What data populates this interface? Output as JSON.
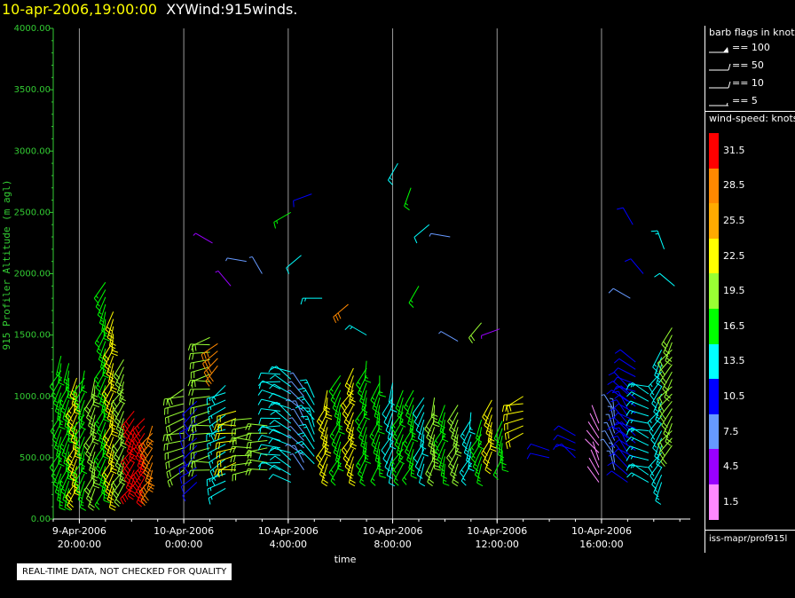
{
  "header": {
    "date": "10-apr-2006,19:00:00",
    "name": "XYWind:915winds."
  },
  "notice": "REAL-TIME DATA, NOT CHECKED FOR QUALITY",
  "legend": {
    "barb_header": "barb flags in knots",
    "flags": [
      {
        "label": "== 100"
      },
      {
        "label": "== 50"
      },
      {
        "label": "== 10"
      },
      {
        "label": "== 5"
      }
    ],
    "speed_header": "wind-speed: knots",
    "source": "iss-mapr/prof915l"
  },
  "colors": {
    "axis": "#33cc33",
    "scale": [
      "#ff0000",
      "#ff8800",
      "#ffaa00",
      "#ffff00",
      "#99ff33",
      "#00ff00",
      "#00ffff",
      "#0000ff",
      "#6699ff",
      "#9900ff",
      "#ff88ff"
    ]
  },
  "chart_data": {
    "type": "scatter",
    "xlabel": "time",
    "ylabel": "915 Profiler Altitude (m agl)",
    "ylim": [
      0,
      4000
    ],
    "yticks": [
      "0.00",
      "500.00",
      "1000.00",
      "1500.00",
      "2000.00",
      "2500.00",
      "3000.00",
      "3500.00",
      "4000.00"
    ],
    "xticks": [
      {
        "date": "9-Apr-2006",
        "time": "20:00:00",
        "hour": 20
      },
      {
        "date": "10-Apr-2006",
        "time": "0:00:00",
        "hour": 24
      },
      {
        "date": "10-Apr-2006",
        "time": "4:00:00",
        "hour": 28
      },
      {
        "date": "10-Apr-2006",
        "time": "8:00:00",
        "hour": 32
      },
      {
        "date": "10-Apr-2006",
        "time": "12:00:00",
        "hour": 36
      },
      {
        "date": "10-Apr-2006",
        "time": "16:00:00",
        "hour": 40
      }
    ],
    "xlim": [
      19,
      43.4
    ],
    "speed_scale": [
      "31.5",
      "28.5",
      "25.5",
      "22.5",
      "19.5",
      "16.5",
      "13.5",
      "10.5",
      "7.5",
      "4.5",
      "1.5"
    ],
    "profiles": [
      {
        "t": 19.3,
        "bottom": 250,
        "top": 1350,
        "speed": 18,
        "dir": 200
      },
      {
        "t": 19.6,
        "bottom": 250,
        "top": 1300,
        "speed": 17,
        "dir": 195
      },
      {
        "t": 19.9,
        "bottom": 250,
        "top": 1150,
        "speed": 20,
        "dir": 200
      },
      {
        "t": 20.2,
        "bottom": 250,
        "top": 1250,
        "speed": 17,
        "dir": 205
      },
      {
        "t": 20.6,
        "bottom": 250,
        "top": 1200,
        "speed": 16,
        "dir": 200
      },
      {
        "t": 21.0,
        "bottom": 250,
        "top": 1950,
        "speed": 19,
        "dir": 200
      },
      {
        "t": 21.3,
        "bottom": 250,
        "top": 1700,
        "speed": 20,
        "dir": 200
      },
      {
        "t": 21.7,
        "bottom": 280,
        "top": 1300,
        "speed": 21,
        "dir": 205
      },
      {
        "t": 22.1,
        "bottom": 280,
        "top": 900,
        "speed": 30,
        "dir": 210
      },
      {
        "t": 22.5,
        "bottom": 280,
        "top": 850,
        "speed": 30,
        "dir": 210
      },
      {
        "t": 22.8,
        "bottom": 280,
        "top": 800,
        "speed": 30,
        "dir": 210
      },
      {
        "t": 24.0,
        "bottom": 400,
        "top": 1100,
        "speed": 17,
        "dir": 250
      },
      {
        "t": 24.5,
        "bottom": 300,
        "top": 1000,
        "speed": 11,
        "dir": 230
      },
      {
        "t": 25.0,
        "bottom": 400,
        "top": 1500,
        "speed": 18,
        "dir": 260
      },
      {
        "t": 25.3,
        "bottom": 1250,
        "top": 1450,
        "speed": 31,
        "dir": 230
      },
      {
        "t": 25.6,
        "bottom": 250,
        "top": 1100,
        "speed": 14,
        "dir": 240
      },
      {
        "t": 26.0,
        "bottom": 400,
        "top": 900,
        "speed": 19,
        "dir": 260
      },
      {
        "t": 26.6,
        "bottom": 400,
        "top": 850,
        "speed": 20,
        "dir": 265
      },
      {
        "t": 27.2,
        "bottom": 400,
        "top": 800,
        "speed": 18,
        "dir": 270
      },
      {
        "t": 27.7,
        "bottom": 400,
        "top": 1200,
        "speed": 14,
        "dir": 280
      },
      {
        "t": 28.1,
        "bottom": 300,
        "top": 1250,
        "speed": 11,
        "dir": 300
      },
      {
        "t": 28.6,
        "bottom": 400,
        "top": 1100,
        "speed": 9,
        "dir": 320
      },
      {
        "t": 29.0,
        "bottom": 450,
        "top": 1000,
        "speed": 13,
        "dir": 330
      },
      {
        "t": 29.5,
        "bottom": 450,
        "top": 1100,
        "speed": 18,
        "dir": 200
      },
      {
        "t": 30.0,
        "bottom": 450,
        "top": 1200,
        "speed": 17,
        "dir": 200
      },
      {
        "t": 30.5,
        "bottom": 450,
        "top": 1250,
        "speed": 19,
        "dir": 205
      },
      {
        "t": 31.0,
        "bottom": 450,
        "top": 1300,
        "speed": 17,
        "dir": 200
      },
      {
        "t": 31.5,
        "bottom": 450,
        "top": 1200,
        "speed": 16,
        "dir": 195
      },
      {
        "t": 32.0,
        "bottom": 450,
        "top": 1150,
        "speed": 15,
        "dir": 200
      },
      {
        "t": 32.4,
        "bottom": 450,
        "top": 1100,
        "speed": 17,
        "dir": 205
      },
      {
        "t": 32.8,
        "bottom": 450,
        "top": 1050,
        "speed": 14,
        "dir": 200
      },
      {
        "t": 33.2,
        "bottom": 450,
        "top": 1000,
        "speed": 13,
        "dir": 200
      },
      {
        "t": 33.6,
        "bottom": 450,
        "top": 1000,
        "speed": 16,
        "dir": 195
      },
      {
        "t": 34.0,
        "bottom": 450,
        "top": 950,
        "speed": 18,
        "dir": 200
      },
      {
        "t": 34.5,
        "bottom": 450,
        "top": 950,
        "speed": 19,
        "dir": 200
      },
      {
        "t": 35.0,
        "bottom": 450,
        "top": 900,
        "speed": 17,
        "dir": 200
      },
      {
        "t": 35.4,
        "bottom": 450,
        "top": 850,
        "speed": 16,
        "dir": 205
      },
      {
        "t": 35.8,
        "bottom": 550,
        "top": 1000,
        "speed": 18,
        "dir": 200
      },
      {
        "t": 36.2,
        "bottom": 500,
        "top": 850,
        "speed": 17,
        "dir": 195
      },
      {
        "t": 37.0,
        "bottom": 700,
        "top": 1050,
        "speed": 20,
        "dir": 250
      },
      {
        "t": 38.0,
        "bottom": 500,
        "top": 600,
        "speed": 13,
        "dir": 280
      },
      {
        "t": 39.0,
        "bottom": 500,
        "top": 700,
        "speed": 10,
        "dir": 300
      },
      {
        "t": 39.9,
        "bottom": 300,
        "top": 800,
        "speed": 5,
        "dir": 330
      },
      {
        "t": 40.5,
        "bottom": 400,
        "top": 900,
        "speed": 7,
        "dir": 340
      },
      {
        "t": 41.0,
        "bottom": 300,
        "top": 1100,
        "speed": 8,
        "dir": 320
      },
      {
        "t": 41.3,
        "bottom": 500,
        "top": 1300,
        "speed": 10,
        "dir": 300
      },
      {
        "t": 41.8,
        "bottom": 300,
        "top": 1100,
        "speed": 11,
        "dir": 290
      },
      {
        "t": 42.3,
        "bottom": 300,
        "top": 1400,
        "speed": 16,
        "dir": 210
      },
      {
        "t": 42.7,
        "bottom": 600,
        "top": 1600,
        "speed": 18,
        "dir": 215
      }
    ],
    "barbs": [
      {
        "t": 25.1,
        "z": 2250,
        "speed": 5,
        "dir": 300
      },
      {
        "t": 25.8,
        "z": 1900,
        "speed": 4,
        "dir": 320
      },
      {
        "t": 26.4,
        "z": 2100,
        "speed": 6,
        "dir": 280
      },
      {
        "t": 27.0,
        "z": 2000,
        "speed": 6,
        "dir": 330
      },
      {
        "t": 28.1,
        "z": 2500,
        "speed": 17,
        "dir": 240
      },
      {
        "t": 28.5,
        "z": 2150,
        "speed": 12,
        "dir": 230
      },
      {
        "t": 28.9,
        "z": 2650,
        "speed": 10,
        "dir": 250
      },
      {
        "t": 29.3,
        "z": 1800,
        "speed": 13,
        "dir": 270
      },
      {
        "t": 30.3,
        "z": 1750,
        "speed": 28,
        "dir": 230
      },
      {
        "t": 32.2,
        "z": 2900,
        "speed": 14,
        "dir": 210
      },
      {
        "t": 32.7,
        "z": 2700,
        "speed": 17,
        "dir": 200
      },
      {
        "t": 33.4,
        "z": 2400,
        "speed": 12,
        "dir": 230
      },
      {
        "t": 34.2,
        "z": 2300,
        "speed": 6,
        "dir": 280
      },
      {
        "t": 35.4,
        "z": 1600,
        "speed": 19,
        "dir": 220
      },
      {
        "t": 36.1,
        "z": 1550,
        "speed": 4,
        "dir": 250
      },
      {
        "t": 33.0,
        "z": 1900,
        "speed": 17,
        "dir": 210
      },
      {
        "t": 31.0,
        "z": 1500,
        "speed": 13,
        "dir": 300
      },
      {
        "t": 34.5,
        "z": 1450,
        "speed": 6,
        "dir": 300
      },
      {
        "t": 41.2,
        "z": 2400,
        "speed": 9,
        "dir": 330
      },
      {
        "t": 41.6,
        "z": 2000,
        "speed": 10,
        "dir": 320
      },
      {
        "t": 42.4,
        "z": 2200,
        "speed": 13,
        "dir": 340
      },
      {
        "t": 42.8,
        "z": 1900,
        "speed": 12,
        "dir": 310
      },
      {
        "t": 41.1,
        "z": 1800,
        "speed": 8,
        "dir": 300
      }
    ]
  }
}
